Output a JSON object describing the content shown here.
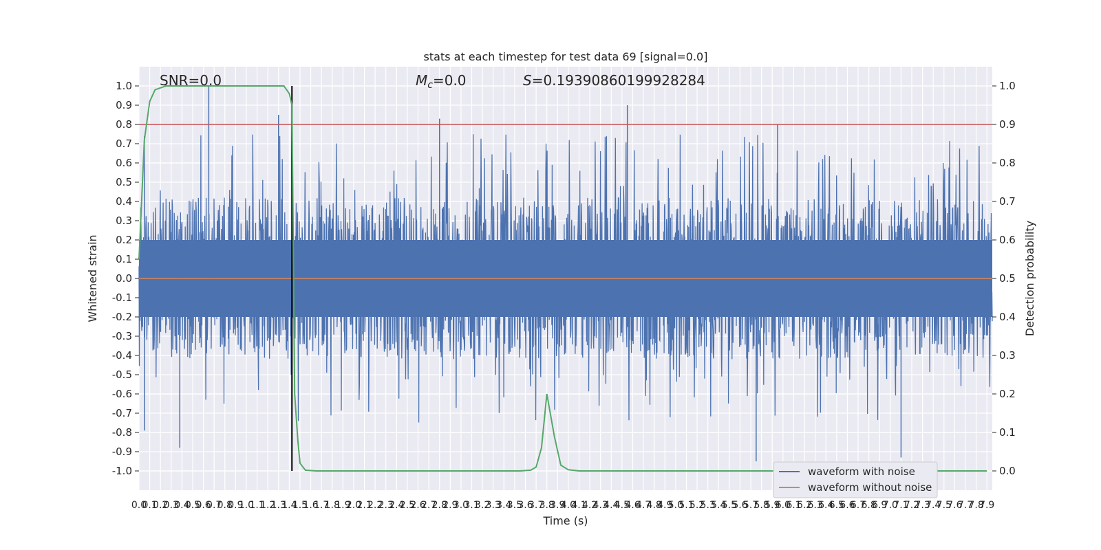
{
  "chart_data": {
    "type": "line",
    "title": "stats at each timestep for test data 69 [signal=0.0]",
    "xlabel": "Time (s)",
    "ylabel_left": "Whitened strain",
    "ylabel_right": "Detection probability",
    "xlim": [
      0.0,
      7.95
    ],
    "ylim_left": [
      -1.1,
      1.1
    ],
    "ylim_right": [
      -0.05,
      1.05
    ],
    "grid": true,
    "background": "#eaeaf2",
    "x_ticks": [
      "0.0",
      "0.1",
      "0.2",
      "0.3",
      "0.4",
      "0.5",
      "0.6",
      "0.7",
      "0.8",
      "0.9",
      "1.0",
      "1.1",
      "1.2",
      "1.3",
      "1.4",
      "1.5",
      "1.6",
      "1.7",
      "1.8",
      "1.9",
      "2.0",
      "2.1",
      "2.2",
      "2.3",
      "2.4",
      "2.5",
      "2.6",
      "2.7",
      "2.8",
      "2.9",
      "3.0",
      "3.1",
      "3.2",
      "3.3",
      "3.4",
      "3.5",
      "3.6",
      "3.7",
      "3.8",
      "3.9",
      "4.0",
      "4.1",
      "4.2",
      "4.3",
      "4.4",
      "4.5",
      "4.6",
      "4.7",
      "4.8",
      "4.9",
      "5.0",
      "5.1",
      "5.2",
      "5.3",
      "5.4",
      "5.5",
      "5.6",
      "5.7",
      "5.8",
      "5.9",
      "6.0",
      "6.1",
      "6.2",
      "6.3",
      "6.4",
      "6.5",
      "6.6",
      "6.7",
      "6.8",
      "6.9",
      "7.0",
      "7.1",
      "7.2",
      "7.3",
      "7.4",
      "7.5",
      "7.6",
      "7.7",
      "7.8",
      "7.9"
    ],
    "y_ticks_left": [
      "1.0",
      "0.9",
      "0.8",
      "0.7",
      "0.6",
      "0.5",
      "0.4",
      "0.3",
      "0.2",
      "0.1",
      "0.0",
      "-0.1",
      "-0.2",
      "-0.3",
      "-0.4",
      "-0.5",
      "-0.6",
      "-0.7",
      "-0.8",
      "-0.9",
      "-1.0"
    ],
    "y_ticks_right": [
      "1.0",
      "0.9",
      "0.8",
      "0.7",
      "0.6",
      "0.5",
      "0.4",
      "0.3",
      "0.2",
      "0.1",
      "0.0"
    ],
    "annotations": {
      "snr": "SNR=0.0",
      "mc": "=0.0",
      "mc_symbol": "M",
      "mc_subscript": "c",
      "s_symbol": "S",
      "s": "=0.19390860199928284"
    },
    "threshold": {
      "axis": "right",
      "value": 0.9,
      "color": "#c44e52"
    },
    "vline": {
      "x": 1.425,
      "ymin": -1.0,
      "ymax": 1.0,
      "color": "#000000"
    },
    "series": [
      {
        "name": "waveform with noise",
        "axis": "left",
        "color": "#4c72b0",
        "kind": "noise",
        "typical_amplitude": [
          -0.42,
          0.42
        ],
        "notable_peaks": [
          {
            "x": 0.65,
            "y": 1.0
          },
          {
            "x": 1.3,
            "y": 0.85
          },
          {
            "x": 2.8,
            "y": 0.83
          },
          {
            "x": 4.55,
            "y": 0.9
          },
          {
            "x": 5.95,
            "y": 0.8
          },
          {
            "x": 0.38,
            "y": -0.88
          },
          {
            "x": 5.75,
            "y": -0.95
          },
          {
            "x": 7.1,
            "y": -0.93
          },
          {
            "x": 0.05,
            "y": 0.74
          },
          {
            "x": 0.05,
            "y": -0.79
          }
        ]
      },
      {
        "name": "waveform without noise",
        "axis": "left",
        "color": "#dd8452",
        "x": [
          0.0,
          7.95
        ],
        "y": [
          0.0,
          0.0
        ]
      },
      {
        "name": "detection probability",
        "axis": "right",
        "color": "#55a868",
        "x": [
          0.0,
          0.05,
          0.1,
          0.15,
          0.25,
          0.5,
          1.0,
          1.35,
          1.4,
          1.425,
          1.45,
          1.48,
          1.5,
          1.55,
          1.65,
          2.0,
          3.0,
          3.55,
          3.65,
          3.7,
          3.75,
          3.8,
          3.87,
          3.93,
          4.0,
          4.1,
          4.3,
          5.0,
          6.0,
          7.0,
          7.9
        ],
        "y": [
          0.55,
          0.86,
          0.96,
          0.99,
          1.0,
          1.0,
          1.0,
          1.0,
          0.98,
          0.95,
          0.2,
          0.08,
          0.02,
          0.002,
          0.0,
          0.0,
          0.0,
          0.0,
          0.002,
          0.01,
          0.06,
          0.2,
          0.09,
          0.015,
          0.003,
          0.0,
          0.0,
          0.0,
          0.0,
          0.0,
          0.0
        ]
      }
    ],
    "legend": {
      "placement": "lower-right",
      "entries": [
        {
          "label": "waveform with noise",
          "color": "#4c72b0"
        },
        {
          "label": "waveform without noise",
          "color": "#dd8452"
        }
      ]
    }
  }
}
